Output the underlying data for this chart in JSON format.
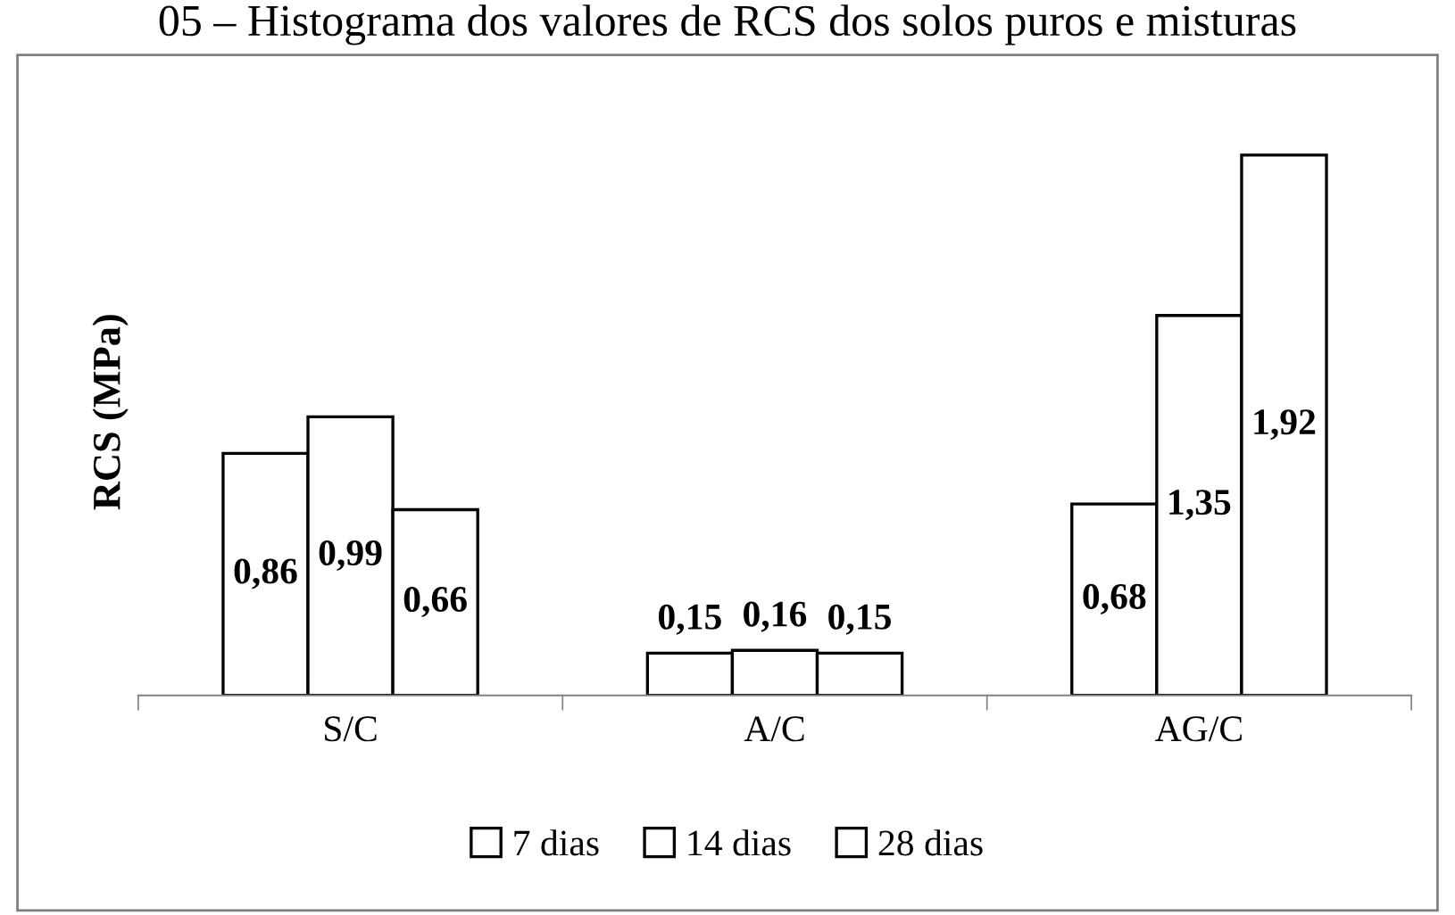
{
  "chart_data": {
    "type": "bar",
    "title": "05 – Histograma dos valores de RCS dos solos puros e misturas",
    "ylabel": "RCS (MPa)",
    "categories": [
      "S/C",
      "A/C",
      "AG/C"
    ],
    "series": [
      {
        "name": "7 dias",
        "color": "#ffffff",
        "values": [
          0.86,
          0.15,
          0.68
        ],
        "value_labels": [
          "0,86",
          "0,15",
          "0,68"
        ]
      },
      {
        "name": "14 dias",
        "color": "#ffffff",
        "values": [
          0.99,
          0.16,
          1.35
        ],
        "value_labels": [
          "0,99",
          "0,16",
          "1,35"
        ]
      },
      {
        "name": "28 dias",
        "color": "#ffffff",
        "values": [
          0.66,
          0.15,
          1.92
        ],
        "value_labels": [
          "0,66",
          "0,15",
          "1,92"
        ]
      }
    ],
    "grid": false,
    "legend": "bottom"
  }
}
